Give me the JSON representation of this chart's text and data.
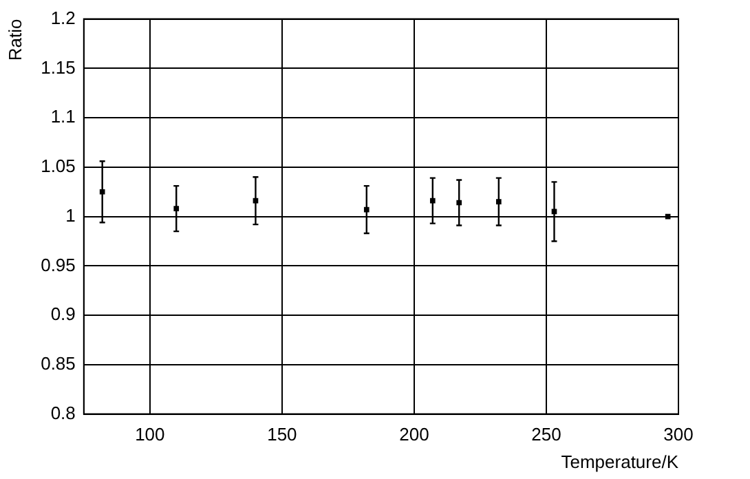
{
  "chart_data": {
    "type": "scatter",
    "xlabel": "Temperature/K",
    "ylabel": "Ratio",
    "x": [
      82,
      110,
      140,
      182,
      207,
      217,
      232,
      253,
      296
    ],
    "values": [
      1.025,
      1.008,
      1.016,
      1.007,
      1.016,
      1.014,
      1.015,
      1.005,
      1.0
    ],
    "errors": [
      0.031,
      0.023,
      0.024,
      0.024,
      0.023,
      0.023,
      0.024,
      0.03,
      null
    ],
    "color": "#000000",
    "marker": "square",
    "grid": true,
    "xlim": [
      75,
      300
    ],
    "xticks": [
      100,
      150,
      200,
      250,
      300
    ],
    "ylim": [
      0.8,
      1.2
    ],
    "yticks": [
      0.8,
      0.85,
      0.9,
      0.95,
      1,
      1.05,
      1.1,
      1.15,
      1.2
    ]
  }
}
